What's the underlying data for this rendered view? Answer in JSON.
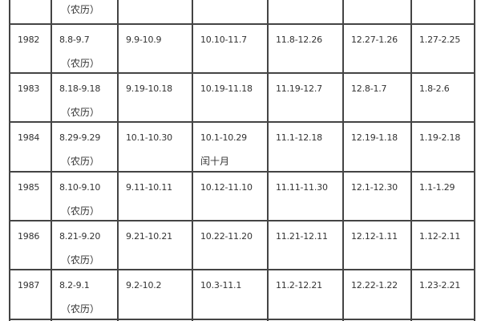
{
  "lunar_note": "（农历）",
  "leap_month_note": "闰十月",
  "partial_top_row": {
    "note": "（农历）"
  },
  "rows": [
    {
      "year": "1982",
      "cols": [
        "8.8-9.7",
        "9.9-10.9",
        "10.10-11.7",
        "11.8-12.26",
        "12.27-1.26",
        "1.27-2.25"
      ]
    },
    {
      "year": "1983",
      "cols": [
        "8.18-9.18",
        "9.19-10.18",
        "10.19-11.18",
        "11.19-12.7",
        "12.8-1.7",
        "1.8-2.6"
      ]
    },
    {
      "year": "1984",
      "cols": [
        "8.29-9.29",
        "10.1-10.30",
        "10.1-10.29",
        "11.1-12.18",
        "12.19-1.18",
        "1.19-2.18"
      ],
      "extra": "闰十月"
    },
    {
      "year": "1985",
      "cols": [
        "8.10-9.10",
        "9.11-10.11",
        "10.12-11.10",
        "11.11-11.30",
        "12.1-12.30",
        "1.1-1.29"
      ]
    },
    {
      "year": "1986",
      "cols": [
        "8.21-9.20",
        "9.21-10.21",
        "10.22-11.20",
        "11.21-12.11",
        "12.12-1.11",
        "1.12-2.11"
      ]
    },
    {
      "year": "1987",
      "cols": [
        "8.2-9.1",
        "9.2-10.2",
        "10.3-11.1",
        "11.2-12.21",
        "12.22-1.22",
        "1.23-2.21"
      ]
    }
  ]
}
